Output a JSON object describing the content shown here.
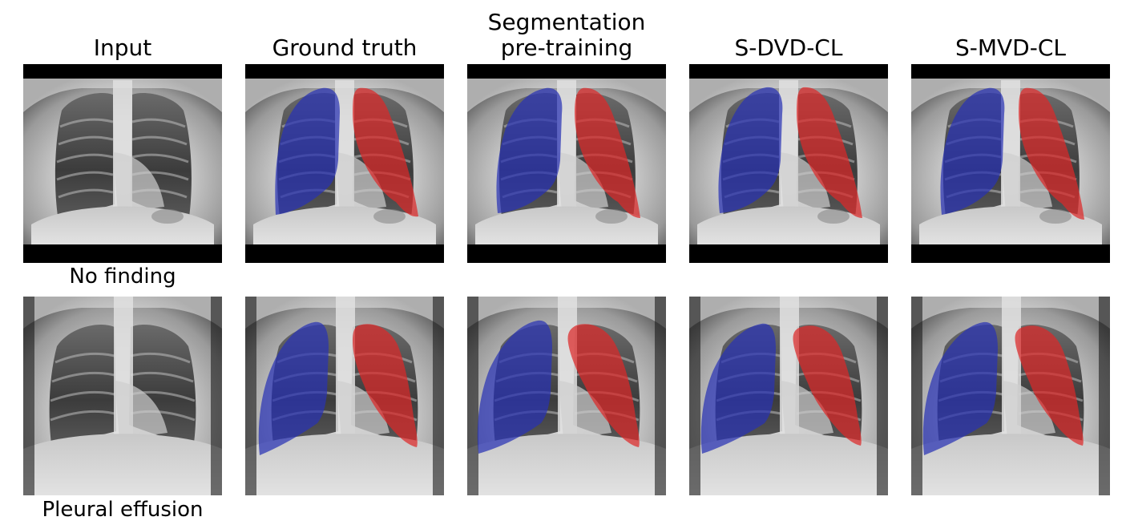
{
  "columns": [
    {
      "key": "input",
      "title_lines": [
        "Input"
      ]
    },
    {
      "key": "ground_truth",
      "title_lines": [
        "Ground truth"
      ]
    },
    {
      "key": "segmentation_pretraining",
      "title_lines": [
        "Segmentation",
        "pre-training"
      ]
    },
    {
      "key": "s_dvd_cl",
      "title_lines": [
        "S-DVD-CL"
      ]
    },
    {
      "key": "s_mvd_cl",
      "title_lines": [
        "S-MVD-CL"
      ]
    }
  ],
  "rows": [
    {
      "key": "row1",
      "label": "No finding"
    },
    {
      "key": "row2",
      "label": "Pleural effusion"
    }
  ],
  "colors": {
    "left_lung_mask": "#2832b4",
    "right_lung_mask": "#dc2828",
    "background": "#000000"
  }
}
